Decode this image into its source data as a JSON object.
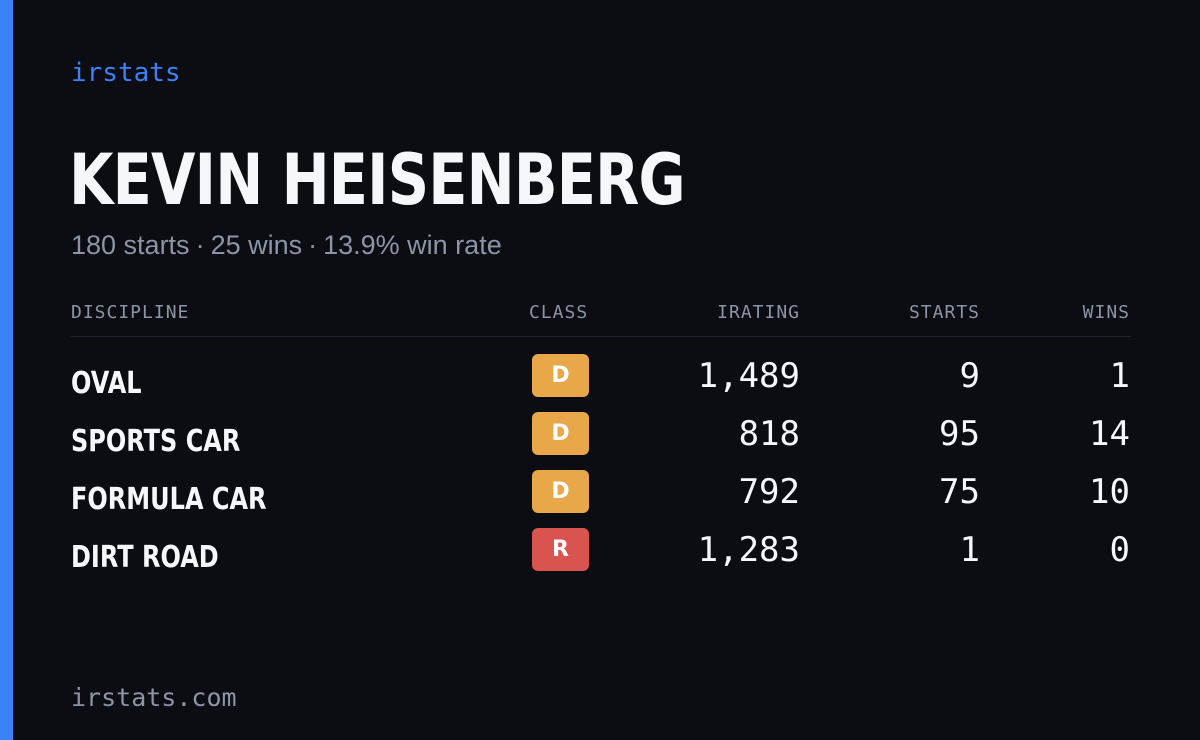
{
  "brand": "irstats",
  "driver": {
    "name": "KEVIN HEISENBERG",
    "summary_starts": "180 starts",
    "summary_wins": "25 wins",
    "summary_win_rate": "13.9% win rate",
    "separator": "·"
  },
  "table": {
    "headers": {
      "discipline": "DISCIPLINE",
      "class": "CLASS",
      "irating": "IRATING",
      "starts": "STARTS",
      "wins": "WINS"
    },
    "rows": [
      {
        "discipline": "OVAL",
        "class": "D",
        "class_color": "#e8a748",
        "irating": "1,489",
        "starts": "9",
        "wins": "1"
      },
      {
        "discipline": "SPORTS CAR",
        "class": "D",
        "class_color": "#e8a748",
        "irating": "818",
        "starts": "95",
        "wins": "14"
      },
      {
        "discipline": "FORMULA CAR",
        "class": "D",
        "class_color": "#e8a748",
        "irating": "792",
        "starts": "75",
        "wins": "10"
      },
      {
        "discipline": "DIRT ROAD",
        "class": "R",
        "class_color": "#d9534f",
        "irating": "1,283",
        "starts": "1",
        "wins": "0"
      }
    ]
  },
  "footer": {
    "url": "irstats.com"
  },
  "colors": {
    "background": "#0b0d13",
    "accent": "#3b82f6",
    "text_primary": "#f5f7fa",
    "text_muted": "#8b95a6"
  }
}
